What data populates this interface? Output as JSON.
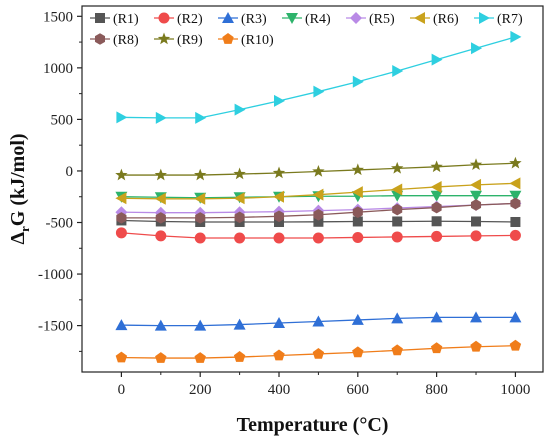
{
  "chart_data": {
    "type": "line",
    "title": "",
    "xlabel": "Temperature (°C)",
    "ylabel_main": "Δ",
    "ylabel_sub": "r",
    "ylabel_rest": "G (kJ/mol)",
    "xlim": [
      -100,
      1070
    ],
    "ylim": [
      -1950,
      1600
    ],
    "x_ticks": [
      0,
      200,
      400,
      600,
      800,
      1000
    ],
    "y_ticks": [
      1500,
      1000,
      500,
      0,
      -500,
      -1000,
      -1500
    ],
    "x": [
      0,
      100,
      200,
      300,
      400,
      500,
      600,
      700,
      800,
      900,
      1000
    ],
    "legend_location": "top",
    "series": [
      {
        "name": "(R1)",
        "color": "#555555",
        "marker": "square",
        "values": [
          -480,
          -490,
          -495,
          -495,
          -495,
          -493,
          -490,
          -490,
          -488,
          -490,
          -495
        ]
      },
      {
        "name": "(R2)",
        "color": "#ef4b4b",
        "marker": "circle",
        "values": [
          -600,
          -630,
          -650,
          -650,
          -650,
          -650,
          -645,
          -640,
          -635,
          -630,
          -625
        ]
      },
      {
        "name": "(R3)",
        "color": "#2f6fd6",
        "marker": "triangle-up",
        "values": [
          -1495,
          -1500,
          -1500,
          -1490,
          -1475,
          -1460,
          -1445,
          -1430,
          -1420,
          -1420,
          -1420
        ]
      },
      {
        "name": "(R4)",
        "color": "#2db36b",
        "marker": "triangle-down",
        "values": [
          -250,
          -255,
          -260,
          -255,
          -250,
          -245,
          -245,
          -240,
          -240,
          -240,
          -240
        ]
      },
      {
        "name": "(R5)",
        "color": "#b98ae6",
        "marker": "diamond",
        "values": [
          -400,
          -405,
          -405,
          -400,
          -395,
          -385,
          -375,
          -360,
          -345,
          -330,
          -315
        ]
      },
      {
        "name": "(R6)",
        "color": "#c9a21c",
        "marker": "triangle-left",
        "values": [
          -265,
          -270,
          -270,
          -265,
          -250,
          -230,
          -205,
          -180,
          -155,
          -135,
          -120
        ]
      },
      {
        "name": "(R7)",
        "color": "#2ecfe0",
        "marker": "triangle-right",
        "values": [
          520,
          515,
          515,
          595,
          680,
          770,
          865,
          970,
          1080,
          1190,
          1300
        ]
      },
      {
        "name": "(R8)",
        "color": "#8a5a5a",
        "marker": "hexagon",
        "values": [
          -455,
          -455,
          -455,
          -450,
          -440,
          -425,
          -400,
          -375,
          -355,
          -330,
          -315
        ]
      },
      {
        "name": "(R9)",
        "color": "#7a7a1e",
        "marker": "star",
        "values": [
          -40,
          -40,
          -40,
          -30,
          -20,
          -5,
          10,
          25,
          40,
          60,
          75
        ]
      },
      {
        "name": "(R10)",
        "color": "#f07d1a",
        "marker": "pentagon",
        "values": [
          -1810,
          -1815,
          -1815,
          -1805,
          -1790,
          -1775,
          -1760,
          -1740,
          -1720,
          -1705,
          -1695
        ]
      }
    ]
  }
}
